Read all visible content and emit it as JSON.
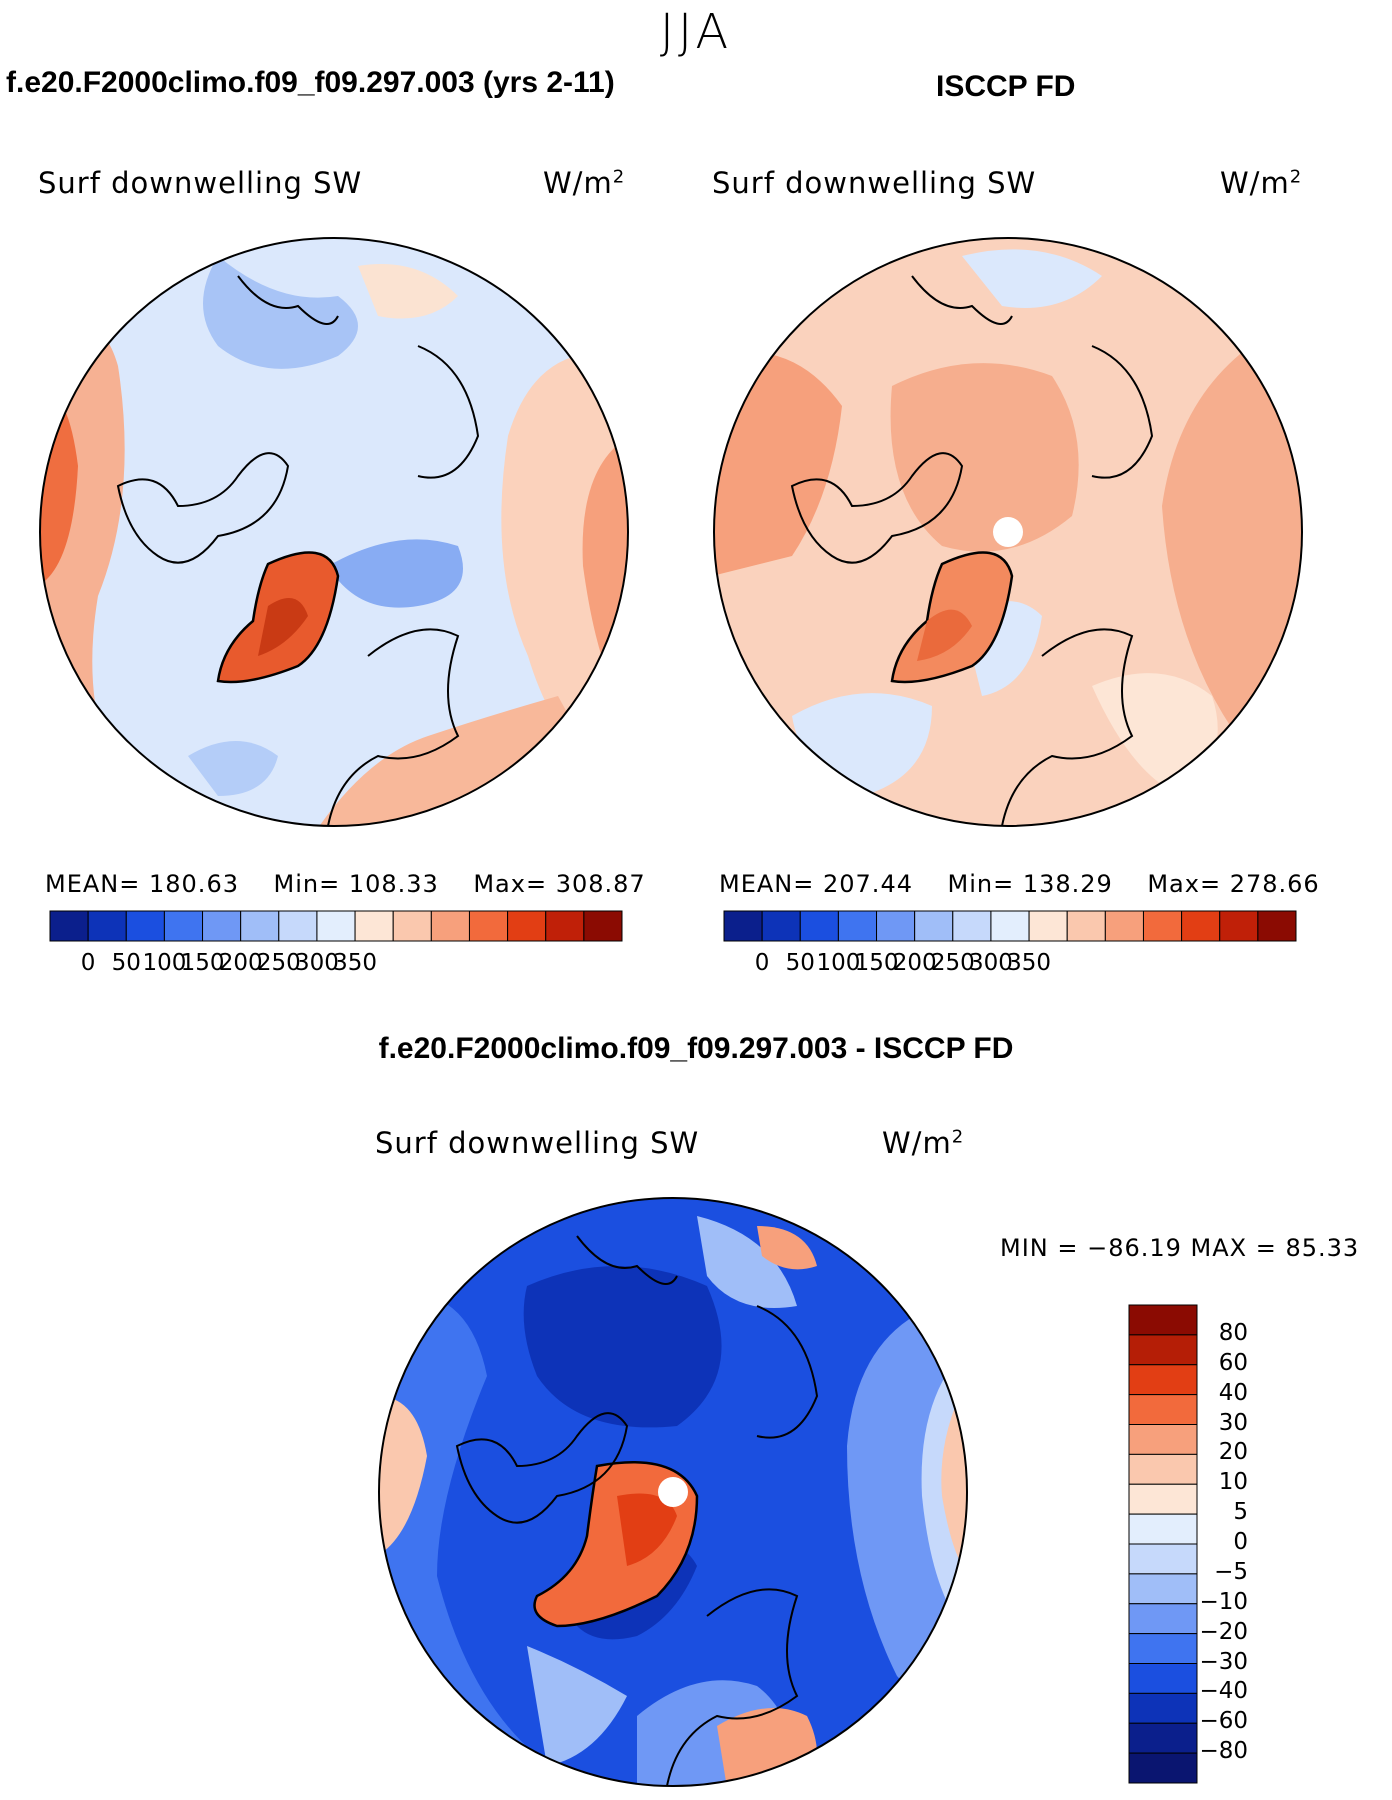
{
  "season": "JJA",
  "top_left": {
    "title": "f.e20.F2000climo.f09_f09.297.003 (yrs 2-11)",
    "variable": "Surf downwelling SW",
    "units": "W/m",
    "units_exp": "2",
    "stats": {
      "mean_label": "MEAN=",
      "mean": "180.63",
      "min_label": "Min=",
      "min": "108.33",
      "max_label": "Max=",
      "max": "308.87"
    }
  },
  "top_right": {
    "title": "ISCCP FD",
    "variable": "Surf downwelling SW",
    "units": "W/m",
    "units_exp": "2",
    "stats": {
      "mean_label": "MEAN=",
      "mean": "207.44",
      "min_label": "Min=",
      "min": "138.29",
      "max_label": "Max=",
      "max": "278.66"
    }
  },
  "colorbar_top": {
    "ticks": [
      "0",
      "50",
      "100",
      "150",
      "200",
      "250",
      "300",
      "350"
    ],
    "colors": [
      "#0b1f8c",
      "#0d33b8",
      "#1b4fe0",
      "#3f74f0",
      "#6f98f5",
      "#a0bef8",
      "#c6d9fb",
      "#e3eefd",
      "#fde6d6",
      "#fac8ae",
      "#f7a07c",
      "#f26a3c",
      "#e23e14",
      "#c02008",
      "#8b0b02"
    ]
  },
  "bottom": {
    "title": "f.e20.F2000climo.f09_f09.297.003 - ISCCP FD",
    "variable": "Surf downwelling SW",
    "units": "W/m",
    "units_exp": "2",
    "minmax": "MIN = −86.19 MAX =   85.33"
  },
  "colorbar_diff": {
    "ticks": [
      "80",
      "60",
      "40",
      "30",
      "20",
      "10",
      "5",
      "0",
      "−5",
      "−10",
      "−20",
      "−30",
      "−40",
      "−60",
      "−80"
    ],
    "colors": [
      "#8b0b02",
      "#b51e06",
      "#e23e14",
      "#f26a3c",
      "#f7a07c",
      "#fac8ae",
      "#fde6d6",
      "#e3eefd",
      "#c6d9fb",
      "#a0bef8",
      "#6f98f5",
      "#3f74f0",
      "#1b4fe0",
      "#0d33b8",
      "#0b1f8c",
      "#0a1570"
    ]
  }
}
